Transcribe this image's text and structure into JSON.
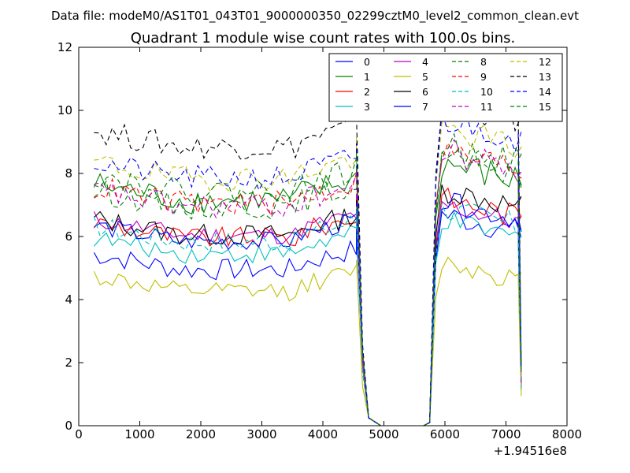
{
  "figure": {
    "suptitle": "Data file: modeM0/AS1T01_043T01_9000000350_02299cztM0_level2_common_clean.evt"
  },
  "chart_data": {
    "type": "line",
    "title": "Quadrant 1 module wise count rates with 100.0s bins.",
    "xlabel": "",
    "ylabel": "",
    "x_offset_label": "+1.94516e8",
    "xlim": [
      0,
      8000
    ],
    "ylim": [
      0,
      12
    ],
    "xticks": [
      0,
      1000,
      2000,
      3000,
      4000,
      5000,
      6000,
      7000,
      8000
    ],
    "yticks": [
      0,
      2,
      4,
      6,
      8,
      10,
      12
    ],
    "grid": false,
    "legend": {
      "placement": "top-right",
      "columns": 4
    },
    "segments": [
      {
        "start": 250,
        "count": 44,
        "step": 100
      },
      {
        "start": 4650,
        "count": 3,
        "step": 100,
        "values": [
          1.5,
          0.3,
          0.0
        ]
      },
      {
        "start": 4950,
        "count": 8,
        "step": 100,
        "values": [
          0,
          0,
          0,
          0,
          0,
          0,
          0,
          0
        ]
      },
      {
        "start": 5750,
        "count": 16,
        "step": 100
      },
      {
        "start": 7250,
        "count": 1,
        "step": 100
      }
    ],
    "series": [
      {
        "name": "0",
        "color": "#0000ff",
        "dash": false,
        "base1": 5.1,
        "drop": 1.9,
        "base2": 6.8,
        "amp": 0.35
      },
      {
        "name": "1",
        "color": "#008000",
        "dash": false,
        "base1": 7.3,
        "drop": 2.3,
        "base2": 8.4,
        "amp": 0.45
      },
      {
        "name": "2",
        "color": "#ff0000",
        "dash": false,
        "base1": 6.1,
        "drop": 2.0,
        "base2": 7.3,
        "amp": 0.35
      },
      {
        "name": "3",
        "color": "#00bfbf",
        "dash": false,
        "base1": 5.6,
        "drop": 1.8,
        "base2": 6.6,
        "amp": 0.3
      },
      {
        "name": "4",
        "color": "#bf00bf",
        "dash": false,
        "base1": 6.2,
        "drop": 2.0,
        "base2": 7.1,
        "amp": 0.3
      },
      {
        "name": "5",
        "color": "#bfbf00",
        "dash": false,
        "base1": 4.4,
        "drop": 1.1,
        "base2": 5.3,
        "amp": 0.3
      },
      {
        "name": "6",
        "color": "#000000",
        "dash": false,
        "base1": 6.2,
        "drop": 2.0,
        "base2": 7.6,
        "amp": 0.35
      },
      {
        "name": "7",
        "color": "#0000ff",
        "dash": false,
        "base1": 6.0,
        "drop": 1.9,
        "base2": 7.2,
        "amp": 0.3
      },
      {
        "name": "8",
        "color": "#008000",
        "dash": true,
        "base1": 7.1,
        "drop": 2.2,
        "base2": 8.6,
        "amp": 0.4
      },
      {
        "name": "9",
        "color": "#ff0000",
        "dash": true,
        "base1": 7.2,
        "drop": 2.2,
        "base2": 8.8,
        "amp": 0.4
      },
      {
        "name": "10",
        "color": "#00bfbf",
        "dash": true,
        "base1": 6.0,
        "drop": 1.8,
        "base2": 7.0,
        "amp": 0.35
      },
      {
        "name": "11",
        "color": "#bf00bf",
        "dash": true,
        "base1": 7.1,
        "drop": 2.1,
        "base2": 8.8,
        "amp": 0.4
      },
      {
        "name": "12",
        "color": "#bfbf00",
        "dash": true,
        "base1": 8.0,
        "drop": 2.4,
        "base2": 9.5,
        "amp": 0.4
      },
      {
        "name": "13",
        "color": "#000000",
        "dash": true,
        "base1": 9.0,
        "drop": 2.6,
        "base2": 10.4,
        "amp": 0.4
      },
      {
        "name": "14",
        "color": "#0000ff",
        "dash": true,
        "base1": 8.0,
        "drop": 2.4,
        "base2": 9.8,
        "amp": 0.4
      },
      {
        "name": "15",
        "color": "#008000",
        "dash": true,
        "base1": 7.6,
        "drop": 2.3,
        "base2": 9.0,
        "amp": 0.4
      }
    ]
  }
}
